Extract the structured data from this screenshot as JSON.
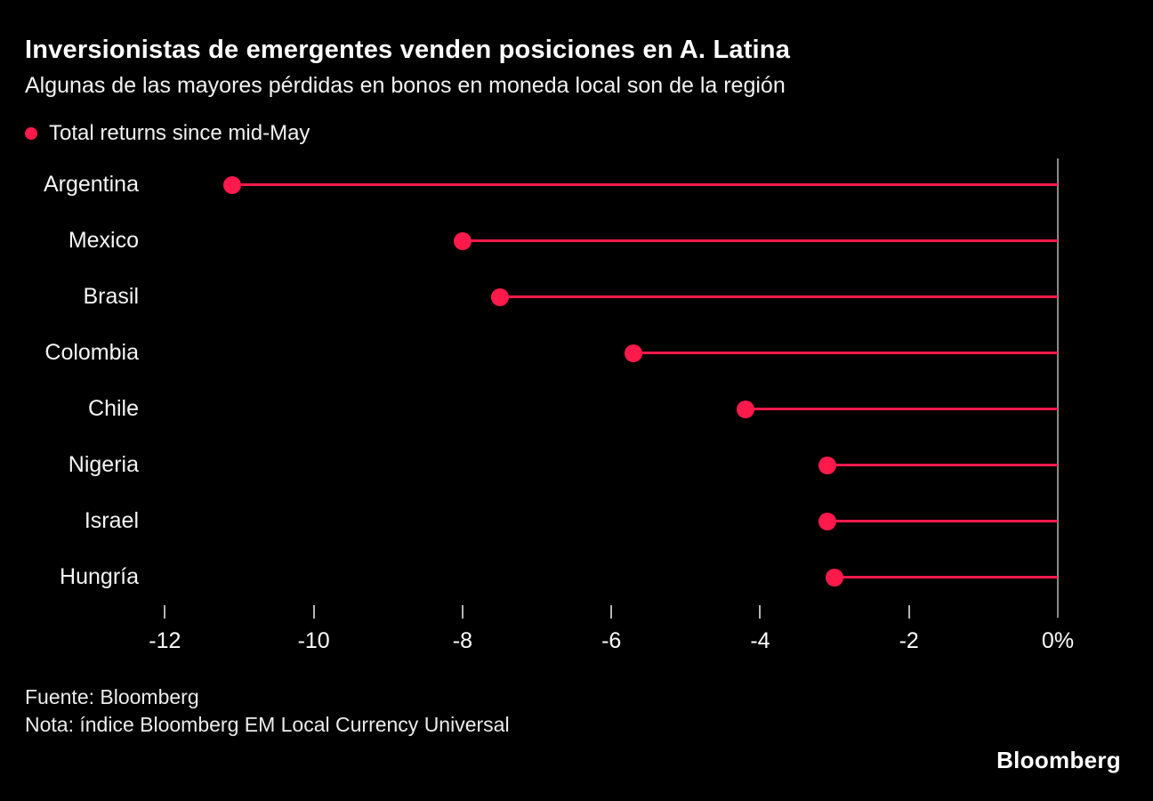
{
  "header": {
    "title": "Inversionistas de emergentes venden posiciones en A. Latina",
    "subtitle": "Algunas de las mayores pérdidas en bonos en moneda local son de la región"
  },
  "legend": {
    "label": "Total returns since mid-May"
  },
  "chart_data": {
    "type": "bar",
    "style": "lollipop",
    "orientation": "horizontal",
    "categories": [
      "Argentina",
      "Mexico",
      "Brasil",
      "Colombia",
      "Chile",
      "Nigeria",
      "Israel",
      "Hungría"
    ],
    "values": [
      -11.1,
      -8.0,
      -7.5,
      -5.7,
      -4.2,
      -3.1,
      -3.1,
      -3.0
    ],
    "unit": "%",
    "series_label": "Total returns since mid-May",
    "x_ticks": [
      -12,
      -10,
      -8,
      -6,
      -4,
      -2,
      0
    ],
    "x_tick_labels": [
      "-12",
      "-10",
      "-8",
      "-6",
      "-4",
      "-2",
      "0%"
    ],
    "xlim": [
      -12.16,
      0
    ],
    "baseline": 0,
    "grid": false,
    "legend_position": "top-left"
  },
  "footer": {
    "source": "Fuente: Bloomberg",
    "note": "Nota: índice Bloomberg EM Local Currency Universal",
    "brand": "Bloomberg"
  },
  "colors": {
    "accent": "#ff1a4b",
    "background": "#000000",
    "text": "#ffffff",
    "axis": "#8a8a8a"
  }
}
